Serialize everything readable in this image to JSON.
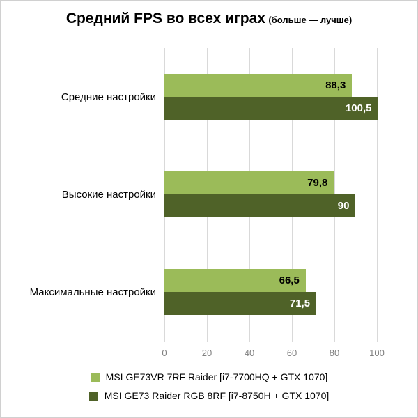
{
  "chart_data": {
    "type": "bar",
    "orientation": "horizontal",
    "title": "Средний FPS во всех играх",
    "subtitle": "(больше — лучше)",
    "categories": [
      "Средние настройки",
      "Высокие настройки",
      "Максимальные настройки"
    ],
    "series": [
      {
        "name": "MSI GE73VR 7RF Raider [i7-7700HQ + GTX 1070]",
        "values": [
          88.3,
          79.8,
          66.5
        ],
        "labels": [
          "88,3",
          "79,8",
          "66,5"
        ],
        "color": "#9bbb59",
        "label_color": "#000000"
      },
      {
        "name": "MSI GE73 Raider RGB 8RF [i7-8750H + GTX 1070]",
        "values": [
          100.5,
          90,
          71.5
        ],
        "labels": [
          "100,5",
          "90",
          "71,5"
        ],
        "color": "#4f6228",
        "label_color": "#ffffff"
      }
    ],
    "xticks": [
      0,
      20,
      40,
      60,
      80,
      100
    ],
    "xlim": [
      0,
      108.2
    ],
    "grid": "vertical",
    "legend_position": "bottom",
    "value_labels": "inside-end"
  },
  "colors": {
    "grid": "#d9d9d9",
    "tick_text": "#808080",
    "border": "#d0d0d0",
    "background": "#ffffff"
  }
}
